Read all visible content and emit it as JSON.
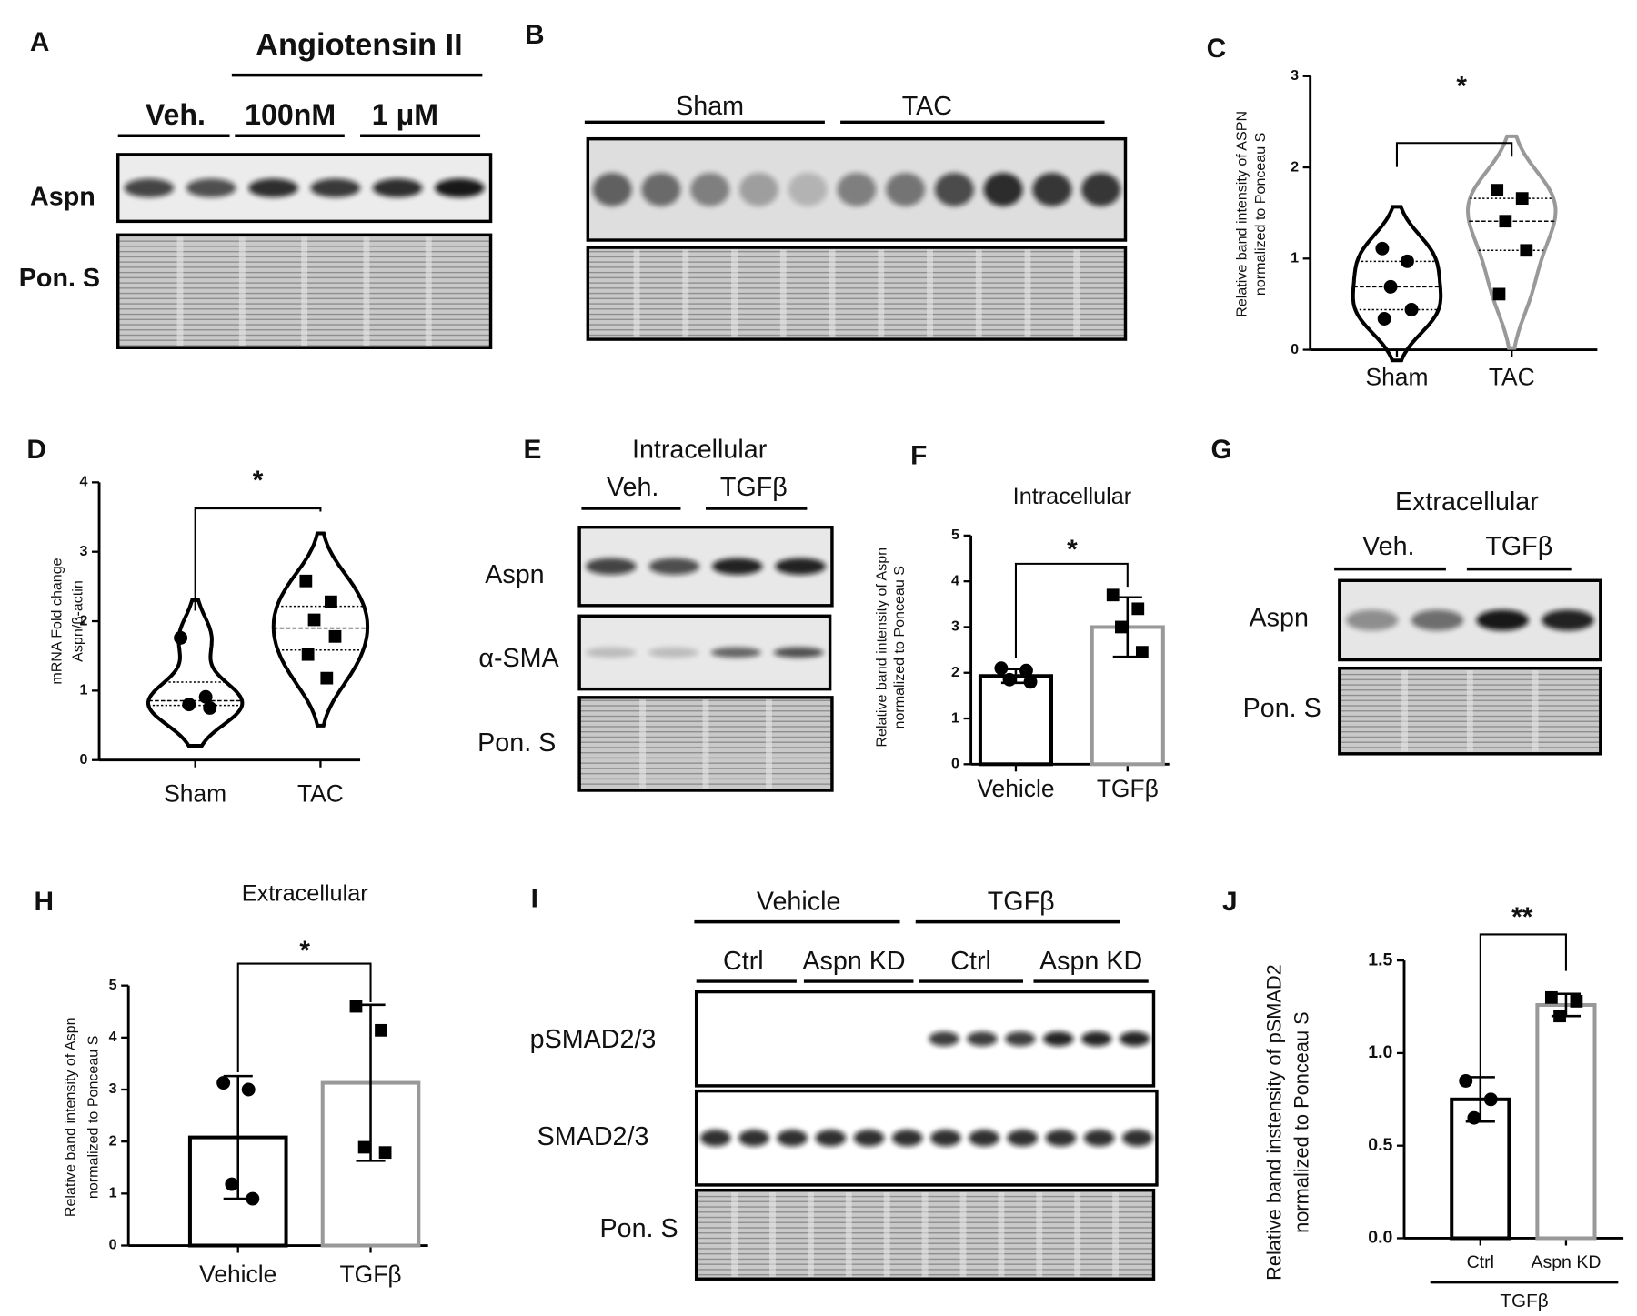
{
  "blots": {
    "A": {
      "panel": "A",
      "header": "Angiotensin II",
      "groups": [
        "Veh.",
        "100nM",
        "1 μM"
      ],
      "rows": [
        "Aspn",
        "Pon. S"
      ]
    },
    "B": {
      "panel": "B",
      "groups": [
        "Sham",
        "TAC"
      ]
    },
    "E": {
      "panel": "E",
      "title": "Intracellular",
      "groups": [
        "Veh.",
        "TGFβ"
      ],
      "rows": [
        "Aspn",
        "α-SMA",
        "Pon. S"
      ]
    },
    "G": {
      "panel": "G",
      "title": "Extracellular",
      "groups": [
        "Veh.",
        "TGFβ"
      ],
      "rows": [
        "Aspn",
        "Pon. S"
      ]
    },
    "I": {
      "panel": "I",
      "groups": [
        "Vehicle",
        "TGFβ"
      ],
      "subgroups": [
        "Ctrl",
        "Aspn KD",
        "Ctrl",
        "Aspn KD"
      ],
      "rows": [
        "pSMAD2/3",
        "SMAD2/3",
        "Pon. S"
      ]
    }
  },
  "chart_data": [
    {
      "panel": "C",
      "type": "violin",
      "ylabel": [
        "Relative band intensity of ASPN",
        "normalized to Ponceau S"
      ],
      "categories": [
        "Sham",
        "TAC"
      ],
      "colors": [
        "#000000",
        "#999999"
      ],
      "markers": [
        "circle",
        "square"
      ],
      "points": [
        [
          1.11,
          0.97,
          0.69,
          0.44,
          0.34
        ],
        [
          1.75,
          1.66,
          1.41,
          1.09,
          0.61
        ]
      ],
      "ylim": [
        0,
        3
      ],
      "yticks": [
        0,
        1,
        2,
        3
      ],
      "significance": "*"
    },
    {
      "panel": "D",
      "type": "violin",
      "ylabel": [
        "mRNA Fold change",
        "Aspn/β-actin"
      ],
      "categories": [
        "Sham",
        "TAC"
      ],
      "colors": [
        "#000000",
        "#000000"
      ],
      "markers": [
        "circle",
        "square"
      ],
      "points": [
        [
          1.76,
          0.91,
          0.8,
          0.75
        ],
        [
          2.58,
          2.28,
          2.02,
          1.78,
          1.52,
          1.18
        ]
      ],
      "ylim": [
        0,
        4
      ],
      "yticks": [
        0,
        1,
        2,
        3,
        4
      ],
      "significance": "*"
    },
    {
      "panel": "F",
      "type": "bar",
      "title": "Intracellular",
      "ylabel": [
        "Relative band intensity of Aspn",
        "normalized to Ponceau S"
      ],
      "categories": [
        "Vehicle",
        "TGFβ"
      ],
      "colors": [
        "#000000",
        "#999999"
      ],
      "markers": [
        "circle",
        "square"
      ],
      "values": [
        1.93,
        3.0
      ],
      "errors": [
        0.15,
        0.65
      ],
      "points": [
        [
          2.1,
          2.05,
          1.85,
          1.8
        ],
        [
          3.7,
          3.4,
          3.0,
          2.45
        ]
      ],
      "ylim": [
        0,
        5
      ],
      "yticks": [
        0,
        1,
        2,
        3,
        4,
        5
      ],
      "significance": "*"
    },
    {
      "panel": "H",
      "type": "bar",
      "title": "Extracellular",
      "ylabel": [
        "Relative band intensity of Aspn",
        "normalized to Ponceau S"
      ],
      "categories": [
        "Vehicle",
        "TGFβ"
      ],
      "colors": [
        "#000000",
        "#999999"
      ],
      "markers": [
        "circle",
        "square"
      ],
      "values": [
        2.08,
        3.13
      ],
      "errors": [
        1.18,
        1.5
      ],
      "points": [
        [
          3.13,
          3.0,
          1.18,
          0.9
        ],
        [
          4.6,
          4.14,
          1.89,
          1.79
        ]
      ],
      "ylim": [
        0,
        5
      ],
      "yticks": [
        0,
        1,
        2,
        3,
        4,
        5
      ],
      "significance": "*"
    },
    {
      "panel": "J",
      "type": "bar",
      "ylabel": [
        "Relative band instensity of pSMAD2",
        "normalized to Ponceau S"
      ],
      "categories": [
        "Ctrl",
        "Aspn KD"
      ],
      "group_label": "TGFβ",
      "colors": [
        "#000000",
        "#999999"
      ],
      "markers": [
        "circle",
        "square"
      ],
      "values": [
        0.75,
        1.26
      ],
      "errors": [
        0.12,
        0.06
      ],
      "points": [
        [
          0.85,
          0.75,
          0.65
        ],
        [
          1.3,
          1.28,
          1.2
        ]
      ],
      "ylim": [
        0,
        1.5
      ],
      "yticks": [
        {
          "value": 0,
          "label": "0.0"
        },
        0.5,
        {
          "value": 1,
          "label": "1.0"
        },
        1.5
      ],
      "significance": "**"
    }
  ]
}
